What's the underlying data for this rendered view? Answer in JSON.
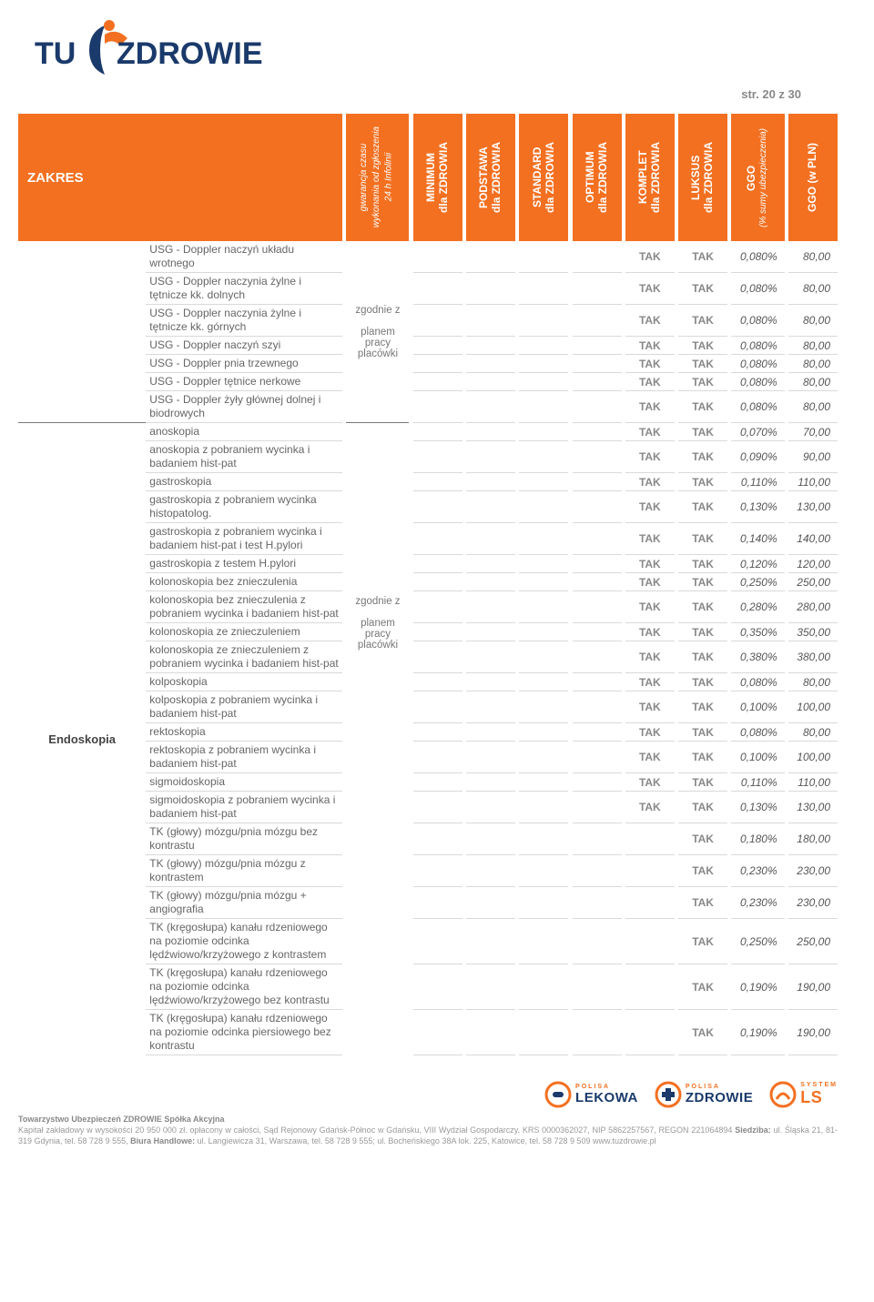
{
  "colors": {
    "accent": "#f37021",
    "navy": "#1a3a6b",
    "text": "#555",
    "muted": "#888",
    "border": "#d9d9d9"
  },
  "logo": {
    "word1": "TU",
    "word2": "ZDROWIE"
  },
  "page_label": "str. 20 z 30",
  "header": {
    "zakres": "ZAKRES",
    "gwarancja_l1": "gwarancja czasu",
    "gwarancja_l2": "wykonania od zgłoszenia",
    "gwarancja_l3": "24 h Infolinii",
    "cols": [
      {
        "l1": "MINIMUM",
        "l2": "dla ZDROWIA"
      },
      {
        "l1": "PODSTAWA",
        "l2": "dla ZDROWIA"
      },
      {
        "l1": "STANDARD",
        "l2": "dla ZDROWIA"
      },
      {
        "l1": "OPTIMUM",
        "l2": "dla ZDROWIA"
      },
      {
        "l1": "KOMPLET",
        "l2": "dla ZDROWIA"
      },
      {
        "l1": "LUKSUS",
        "l2": "dla ZDROWIA"
      }
    ],
    "ggo_l1": "GGO",
    "ggo_l2": "(% sumy ubezpieczenia)",
    "pln": "GGO (w PLN)"
  },
  "tak": "TAK",
  "gwar_text": {
    "g1_l1": "zgodnie z",
    "g1_l2": "planem",
    "g1_l3": "pracy",
    "g1_l4": "placówki"
  },
  "sections": [
    {
      "category": "",
      "gwar_span": 7,
      "gwar_lines": [
        "zgodnie z",
        "",
        "planem",
        "pracy",
        "placówki"
      ],
      "rows": [
        {
          "desc": "USG - Doppler  naczyń układu wrotnego",
          "v": [
            "",
            "",
            "",
            "",
            "TAK",
            "TAK"
          ],
          "pct": "0,080%",
          "pln": "80,00"
        },
        {
          "desc": "USG - Doppler naczynia żylne i tętnicze kk. dolnych",
          "v": [
            "",
            "",
            "",
            "",
            "TAK",
            "TAK"
          ],
          "pct": "0,080%",
          "pln": "80,00"
        },
        {
          "desc": "USG - Doppler naczynia żylne i tętnicze kk. górnych",
          "v": [
            "",
            "",
            "",
            "",
            "TAK",
            "TAK"
          ],
          "pct": "0,080%",
          "pln": "80,00"
        },
        {
          "desc": "USG - Doppler naczyń szyi",
          "v": [
            "",
            "",
            "",
            "",
            "TAK",
            "TAK"
          ],
          "pct": "0,080%",
          "pln": "80,00"
        },
        {
          "desc": "USG - Doppler pnia  trzewnego",
          "v": [
            "",
            "",
            "",
            "",
            "TAK",
            "TAK"
          ],
          "pct": "0,080%",
          "pln": "80,00"
        },
        {
          "desc": "USG - Doppler tętnice nerkowe",
          "v": [
            "",
            "",
            "",
            "",
            "TAK",
            "TAK"
          ],
          "pct": "0,080%",
          "pln": "80,00"
        },
        {
          "desc": "USG - Doppler żyły głównej dolnej i biodrowych",
          "v": [
            "",
            "",
            "",
            "",
            "TAK",
            "TAK"
          ],
          "pct": "0,080%",
          "pln": "80,00"
        }
      ]
    },
    {
      "category": "Endoskopia",
      "gwar_span": 18,
      "gwar_lines": [
        "",
        "",
        "",
        "zgodnie z",
        "",
        "",
        "planem",
        "pracy",
        "placówki"
      ],
      "rows": [
        {
          "desc": "anoskopia",
          "v": [
            "",
            "",
            "",
            "",
            "TAK",
            "TAK"
          ],
          "pct": "0,070%",
          "pln": "70,00"
        },
        {
          "desc": "anoskopia z pobraniem wycinka i badaniem hist-pat",
          "v": [
            "",
            "",
            "",
            "",
            "TAK",
            "TAK"
          ],
          "pct": "0,090%",
          "pln": "90,00"
        },
        {
          "desc": "gastroskopia",
          "v": [
            "",
            "",
            "",
            "",
            "TAK",
            "TAK"
          ],
          "pct": "0,110%",
          "pln": "110,00"
        },
        {
          "desc": "gastroskopia z pobraniem wycinka histopatolog.",
          "v": [
            "",
            "",
            "",
            "",
            "TAK",
            "TAK"
          ],
          "pct": "0,130%",
          "pln": "130,00"
        },
        {
          "desc": "gastroskopia z pobraniem wycinka i badaniem hist-pat i test H.pylori",
          "v": [
            "",
            "",
            "",
            "",
            "TAK",
            "TAK"
          ],
          "pct": "0,140%",
          "pln": "140,00"
        },
        {
          "desc": "gastroskopia z testem H.pylori",
          "v": [
            "",
            "",
            "",
            "",
            "TAK",
            "TAK"
          ],
          "pct": "0,120%",
          "pln": "120,00"
        },
        {
          "desc": "kolonoskopia bez znieczulenia",
          "v": [
            "",
            "",
            "",
            "",
            "TAK",
            "TAK"
          ],
          "pct": "0,250%",
          "pln": "250,00"
        },
        {
          "desc": "kolonoskopia bez znieczulenia z pobraniem wycinka i badaniem hist-pat",
          "v": [
            "",
            "",
            "",
            "",
            "TAK",
            "TAK"
          ],
          "pct": "0,280%",
          "pln": "280,00"
        },
        {
          "desc": "kolonoskopia ze znieczuleniem",
          "v": [
            "",
            "",
            "",
            "",
            "TAK",
            "TAK"
          ],
          "pct": "0,350%",
          "pln": "350,00"
        },
        {
          "desc": "kolonoskopia ze znieczuleniem z pobraniem wycinka i badaniem hist-pat",
          "v": [
            "",
            "",
            "",
            "",
            "TAK",
            "TAK"
          ],
          "pct": "0,380%",
          "pln": "380,00"
        },
        {
          "desc": "kolposkopia",
          "v": [
            "",
            "",
            "",
            "",
            "TAK",
            "TAK"
          ],
          "pct": "0,080%",
          "pln": "80,00"
        },
        {
          "desc": "kolposkopia z pobraniem wycinka i badaniem hist-pat",
          "v": [
            "",
            "",
            "",
            "",
            "TAK",
            "TAK"
          ],
          "pct": "0,100%",
          "pln": "100,00"
        },
        {
          "desc": "rektoskopia",
          "v": [
            "",
            "",
            "",
            "",
            "TAK",
            "TAK"
          ],
          "pct": "0,080%",
          "pln": "80,00"
        },
        {
          "desc": "rektoskopia z pobraniem wycinka i badaniem hist-pat",
          "v": [
            "",
            "",
            "",
            "",
            "TAK",
            "TAK"
          ],
          "pct": "0,100%",
          "pln": "100,00"
        },
        {
          "desc": "sigmoidoskopia",
          "v": [
            "",
            "",
            "",
            "",
            "TAK",
            "TAK"
          ],
          "pct": "0,110%",
          "pln": "110,00"
        },
        {
          "desc": "sigmoidoskopia z pobraniem wycinka i badaniem hist-pat",
          "v": [
            "",
            "",
            "",
            "",
            "TAK",
            "TAK"
          ],
          "pct": "0,130%",
          "pln": "130,00"
        }
      ],
      "rows2_span": 6,
      "rows2": [
        {
          "desc": "TK (głowy) mózgu/pnia mózgu bez kontrastu",
          "v": [
            "",
            "",
            "",
            "",
            "",
            "TAK"
          ],
          "pct": "0,180%",
          "pln": "180,00"
        },
        {
          "desc": "TK (głowy) mózgu/pnia mózgu z kontrastem",
          "v": [
            "",
            "",
            "",
            "",
            "",
            "TAK"
          ],
          "pct": "0,230%",
          "pln": "230,00"
        },
        {
          "desc": "TK (głowy) mózgu/pnia mózgu + angiografia",
          "v": [
            "",
            "",
            "",
            "",
            "",
            "TAK"
          ],
          "pct": "0,230%",
          "pln": "230,00"
        },
        {
          "desc": "TK (kręgosłupa) kanału rdzeniowego  na poziomie odcinka  lędźwiowo/krzyżowego z kontrastem",
          "v": [
            "",
            "",
            "",
            "",
            "",
            "TAK"
          ],
          "pct": "0,250%",
          "pln": "250,00"
        },
        {
          "desc": "TK (kręgosłupa) kanału rdzeniowego  na poziomie odcinka  lędźwiowo/krzyżowego bez kontrastu",
          "v": [
            "",
            "",
            "",
            "",
            "",
            "TAK"
          ],
          "pct": "0,190%",
          "pln": "190,00"
        },
        {
          "desc": "TK (kręgosłupa) kanału rdzeniowego na poziomie odcinka  piersiowego bez kontrastu",
          "v": [
            "",
            "",
            "",
            "",
            "",
            "TAK"
          ],
          "pct": "0,190%",
          "pln": "190,00"
        }
      ]
    }
  ],
  "footer_logos": [
    {
      "top": "POLISA",
      "brand": "LEKOWA",
      "icon_color": "#f37021"
    },
    {
      "top": "POLISA",
      "brand": "ZDROWIE",
      "icon_color": "#f37021"
    },
    {
      "top": "SYSTEM",
      "brand": "LS",
      "icon_color": "#f37021"
    }
  ],
  "footer": {
    "bold": "Towarzystwo Ubezpieczeń ZDROWIE Spółka Akcyjna",
    "line1": "Kapitał zakładowy w wysokości 20 950 000 zł. opłacony w całości, Sąd Rejonowy Gdańsk-Północ w Gdańsku, VIII Wydział Gospodarczy, KRS 0000362027, NIP 5862257567, REGON 221064894 ",
    "siedziba_b": "Siedziba:",
    "siedziba": " ul. Śląska 21, 81-319 Gdynia, tel. 58 728 9 555, ",
    "biura_b": "Biura Handlowe:",
    "biura": " ul. Langiewicza 31, Warszawa, tel. 58 728 9 555; ul. Bocheńskiego 38A lok. 225, Katowice, tel. 58 728 9 509 www.tuzdrowie.pl"
  }
}
